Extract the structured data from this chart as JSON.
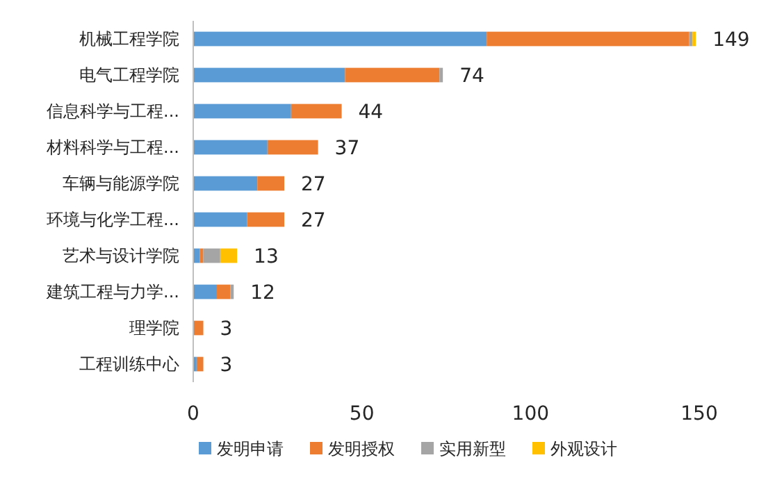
{
  "chart_data": {
    "type": "bar",
    "orientation": "horizontal",
    "stacked": true,
    "categories": [
      "机械工程学院",
      "电气工程学院",
      "信息科学与工程...",
      "材料科学与工程...",
      "车辆与能源学院",
      "环境与化学工程...",
      "艺术与设计学院",
      "建筑工程与力学...",
      "理学院",
      "工程训练中心"
    ],
    "series": [
      {
        "name": "发明申请",
        "color": "#5b9bd5",
        "values": [
          87,
          45,
          29,
          22,
          19,
          16,
          2,
          7,
          0,
          1
        ]
      },
      {
        "name": "发明授权",
        "color": "#ed7d31",
        "values": [
          60,
          28,
          15,
          15,
          8,
          11,
          1,
          4,
          3,
          2
        ]
      },
      {
        "name": "实用新型",
        "color": "#a5a5a5",
        "values": [
          1,
          1,
          0,
          0,
          0,
          0,
          5,
          1,
          0,
          0
        ]
      },
      {
        "name": "外观设计",
        "color": "#ffc000",
        "values": [
          1,
          0,
          0,
          0,
          0,
          0,
          5,
          0,
          0,
          0
        ]
      }
    ],
    "totals": [
      "149",
      "74",
      "44",
      "37",
      "27",
      "27",
      "13",
      "12",
      "3",
      "3"
    ],
    "xlim": [
      0,
      150
    ],
    "xticks": [
      0,
      50,
      100,
      150
    ],
    "grid": false,
    "legend": "bottom"
  }
}
